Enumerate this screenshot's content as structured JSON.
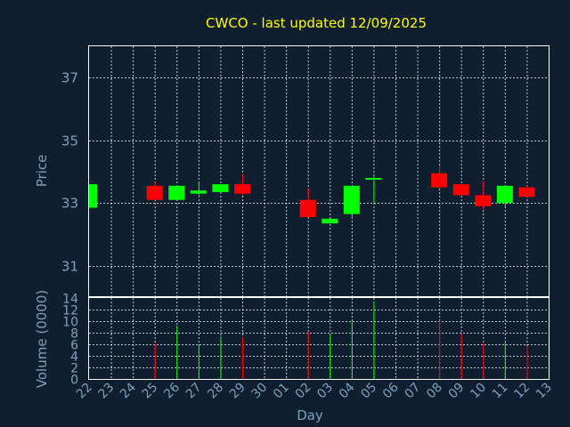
{
  "chart_data": [
    {
      "type": "candlestick",
      "title": "CWCO - last updated 12/09/2025",
      "ylabel": "Price",
      "ylim": [
        30,
        38
      ],
      "yticks": [
        31,
        33,
        35,
        37
      ],
      "grid": true,
      "categories": [
        "22",
        "23",
        "24",
        "25",
        "26",
        "27",
        "28",
        "29",
        "30",
        "01",
        "02",
        "03",
        "04",
        "05",
        "06",
        "07",
        "08",
        "09",
        "10",
        "11",
        "12",
        "13"
      ],
      "candles": [
        {
          "day": "22",
          "open": 32.85,
          "close": 33.6,
          "high": 33.6,
          "low": 32.85
        },
        {
          "day": "25",
          "open": 33.55,
          "close": 33.1,
          "high": 33.7,
          "low": 33.1
        },
        {
          "day": "26",
          "open": 33.1,
          "close": 33.55,
          "high": 33.55,
          "low": 33.1
        },
        {
          "day": "27",
          "open": 33.3,
          "close": 33.4,
          "high": 33.65,
          "low": 33.25
        },
        {
          "day": "28",
          "open": 33.35,
          "close": 33.6,
          "high": 33.6,
          "low": 33.35
        },
        {
          "day": "29",
          "open": 33.6,
          "close": 33.3,
          "high": 33.9,
          "low": 33.25
        },
        {
          "day": "02",
          "open": 33.1,
          "close": 32.55,
          "high": 33.45,
          "low": 32.55
        },
        {
          "day": "03",
          "open": 32.35,
          "close": 32.5,
          "high": 32.5,
          "low": 32.35
        },
        {
          "day": "04",
          "open": 32.65,
          "close": 33.55,
          "high": 33.55,
          "low": 32.5
        },
        {
          "day": "05",
          "open": 33.75,
          "close": 33.8,
          "high": 33.85,
          "low": 33.0
        },
        {
          "day": "08",
          "open": 33.95,
          "close": 33.5,
          "high": 34.2,
          "low": 33.45
        },
        {
          "day": "09",
          "open": 33.6,
          "close": 33.25,
          "high": 33.6,
          "low": 33.25
        },
        {
          "day": "10",
          "open": 33.25,
          "close": 32.9,
          "high": 33.7,
          "low": 32.8
        },
        {
          "day": "11",
          "open": 33.0,
          "close": 33.55,
          "high": 33.55,
          "low": 32.9
        },
        {
          "day": "12",
          "open": 33.5,
          "close": 33.2,
          "high": 33.55,
          "low": 33.2
        }
      ]
    },
    {
      "type": "bar",
      "ylabel": "Volume (0000)",
      "xlabel": "Day",
      "ylim": [
        0,
        14
      ],
      "yticks": [
        0,
        2,
        4,
        6,
        8,
        10,
        12,
        14
      ],
      "categories": [
        "22",
        "23",
        "24",
        "25",
        "26",
        "27",
        "28",
        "29",
        "30",
        "01",
        "02",
        "03",
        "04",
        "05",
        "06",
        "07",
        "08",
        "09",
        "10",
        "11",
        "12",
        "13"
      ],
      "volumes": [
        {
          "day": "25",
          "value": 6.2,
          "direction": "down"
        },
        {
          "day": "26",
          "value": 9.2,
          "direction": "up"
        },
        {
          "day": "27",
          "value": 5.9,
          "direction": "up"
        },
        {
          "day": "28",
          "value": 7.4,
          "direction": "up"
        },
        {
          "day": "29",
          "value": 7.2,
          "direction": "down"
        },
        {
          "day": "02",
          "value": 8.1,
          "direction": "down"
        },
        {
          "day": "03",
          "value": 7.5,
          "direction": "up"
        },
        {
          "day": "04",
          "value": 9.9,
          "direction": "up"
        },
        {
          "day": "05",
          "value": 13.4,
          "direction": "up"
        },
        {
          "day": "08",
          "value": 10.1,
          "direction": "down"
        },
        {
          "day": "09",
          "value": 7.8,
          "direction": "down"
        },
        {
          "day": "10",
          "value": 6.2,
          "direction": "down"
        },
        {
          "day": "11",
          "value": 6.6,
          "direction": "up"
        },
        {
          "day": "12",
          "value": 5.7,
          "direction": "down"
        }
      ]
    }
  ],
  "colors": {
    "background": "#0f1f30",
    "up": "#00ff00",
    "down": "#ff0000",
    "title": "#ffff00",
    "text": "#7f9fbf",
    "grid": "#ffffff"
  }
}
